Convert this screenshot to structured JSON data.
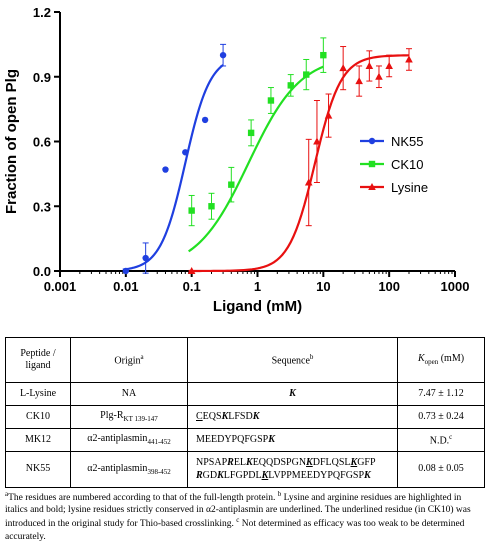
{
  "chart_data": {
    "type": "scatter",
    "xlabel": "Ligand (mM)",
    "ylabel": "Fraction of open Plg",
    "xscale": "log",
    "xlim": [
      0.001,
      1000
    ],
    "ylim": [
      0,
      1.2
    ],
    "xticks": [
      "0.001",
      "0.01",
      "0.1",
      "1",
      "10",
      "100",
      "1000"
    ],
    "yticks": [
      "0.0",
      "0.3",
      "0.6",
      "0.9",
      "1.2"
    ],
    "legend_position": "right",
    "series": [
      {
        "name": "NK55",
        "color": "#1f3fe0",
        "marker": "circle",
        "x": [
          0.01,
          0.02,
          0.04,
          0.08,
          0.16,
          0.3
        ],
        "y": [
          0.0,
          0.06,
          0.47,
          0.55,
          0.7,
          1.0
        ],
        "err": [
          0.0,
          0.07,
          0.0,
          0.0,
          0.0,
          0.05
        ],
        "fit_k": 0.08,
        "fit_n": 2.3
      },
      {
        "name": "CK10",
        "color": "#22e022",
        "marker": "square",
        "x": [
          0.1,
          0.2,
          0.4,
          0.8,
          1.6,
          3.2,
          5.5,
          10
        ],
        "y": [
          0.28,
          0.3,
          0.4,
          0.64,
          0.79,
          0.86,
          0.91,
          1.0
        ],
        "err": [
          0.07,
          0.06,
          0.08,
          0.06,
          0.06,
          0.05,
          0.07,
          0.08
        ],
        "fit_k": 0.73,
        "fit_n": 1.1
      },
      {
        "name": "Lysine",
        "color": "#e81010",
        "marker": "triangle",
        "x": [
          0.1,
          6,
          8,
          12,
          20,
          35,
          50,
          70,
          100,
          200
        ],
        "y": [
          0.0,
          0.41,
          0.6,
          0.72,
          0.94,
          0.88,
          0.95,
          0.9,
          0.95,
          0.98
        ],
        "err": [
          0.0,
          0.2,
          0.19,
          0.1,
          0.1,
          0.07,
          0.07,
          0.05,
          0.05,
          0.05
        ],
        "fit_k": 7.47,
        "fit_n": 2.2
      }
    ]
  },
  "table": {
    "headers": {
      "c1": "Peptide / ligand",
      "c2": "Origin",
      "c2_sup": "a",
      "c3": "Sequence",
      "c3_sup": "b",
      "c4_k": "K",
      "c4_sub": "open",
      "c4_unit": " (mM)"
    },
    "rows": [
      {
        "ligand": "L-Lysine",
        "origin": "NA",
        "kopen": "7.47 ± 1.12"
      },
      {
        "ligand": "CK10",
        "origin": "Plg-R",
        "origin_sub": "KT 139-147",
        "kopen": "0.73 ± 0.24"
      },
      {
        "ligand": "MK12",
        "origin": "α2-antiplasmin",
        "origin_sub": "441-452",
        "kopen": "N.D.",
        "kopen_sup": "c"
      },
      {
        "ligand": "NK55",
        "origin": "α2-antiplasmin",
        "origin_sub": "398-452",
        "kopen": "0.08 ± 0.05"
      }
    ],
    "seq": {
      "lysine": "K",
      "ck10": [
        "C",
        "EQS",
        "K",
        "LFSD",
        "K"
      ],
      "mk12": [
        "MEEDYPQFGSP",
        "K"
      ],
      "nk55_l1": [
        "NPSAP",
        "R",
        "EL",
        "K",
        "EQQDSPGN",
        "K",
        "DFLQSL",
        "K",
        "GFP"
      ],
      "nk55_l2": [
        "R",
        "GD",
        "K",
        "LFGPDL",
        "K",
        "LVPPMEEDYPQFGSP",
        "K"
      ]
    }
  },
  "footnote": {
    "a_mark": "a",
    "a_text": "The residues are numbered according to that of the full-length protein. ",
    "b_mark": "b",
    "b_text": " Lysine and arginine residues are highlighted in italics and bold; lysine residues strictly conserved in α2-antiplasmin are underlined. The underlined residue (in CK10) was introduced in the original study for Thio-based crosslinking. ",
    "c_mark": "c",
    "c_text": " Not determined as efficacy was too weak to be determined accurately."
  }
}
